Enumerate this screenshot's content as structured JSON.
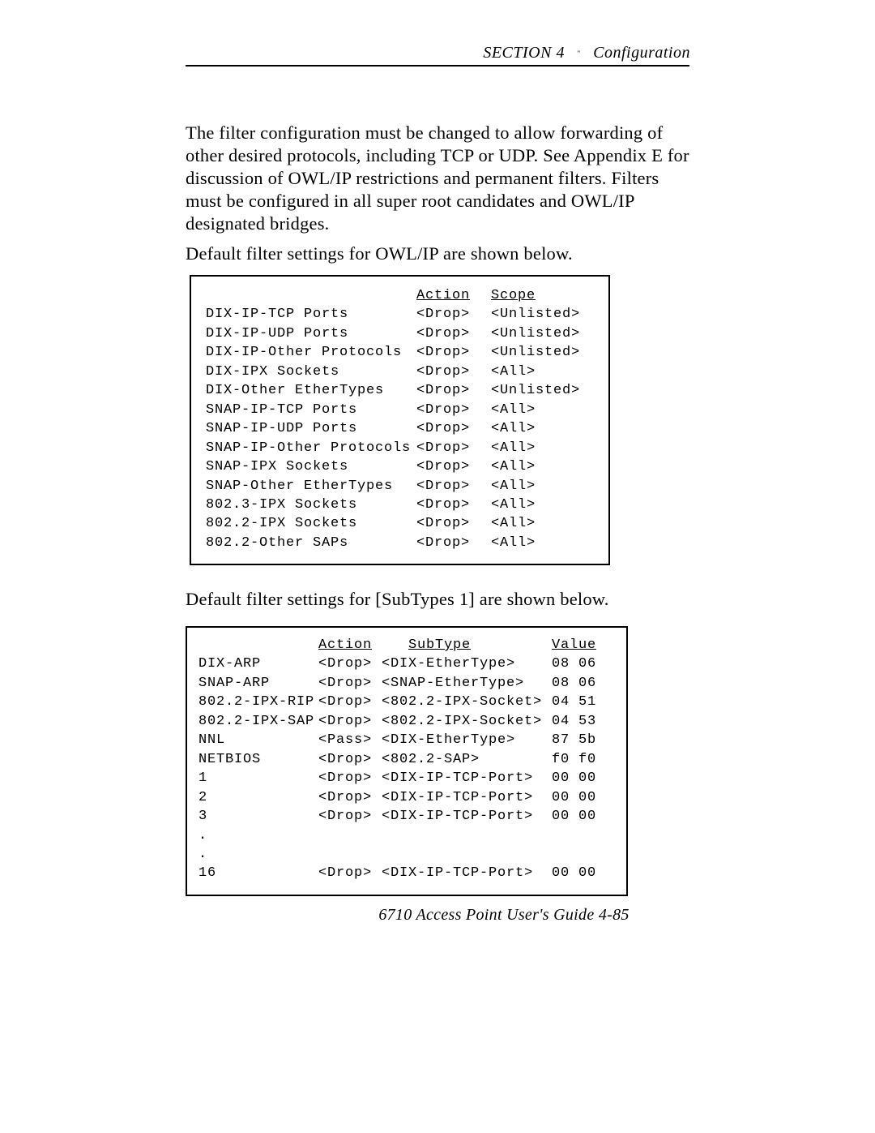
{
  "header": {
    "section": "SECTION 4",
    "title": "Configuration"
  },
  "paragraphs": {
    "p1": "The filter configuration must be changed to allow forwarding of other desired protocols, including TCP or UDP.  See Appendix E for discussion of OWL/IP restrictions and permanent filters.  Filters must be configured in all super root candidates and OWL/IP designated bridges.",
    "p2": "Default filter settings for OWL/IP are shown below.",
    "p3": "Default filter settings for [SubTypes 1] are shown below."
  },
  "table1": {
    "headers": {
      "c2": "Action",
      "c3": "Scope"
    },
    "rows": [
      {
        "name": "DIX-IP-TCP Ports",
        "action": "<Drop>",
        "scope": "<Unlisted>"
      },
      {
        "name": "DIX-IP-UDP Ports",
        "action": "<Drop>",
        "scope": "<Unlisted>"
      },
      {
        "name": "DIX-IP-Other Protocols",
        "action": "<Drop>",
        "scope": "<Unlisted>"
      },
      {
        "name": "DIX-IPX Sockets",
        "action": "<Drop>",
        "scope": "<All>"
      },
      {
        "name": "DIX-Other EtherTypes",
        "action": "<Drop>",
        "scope": "<Unlisted>"
      },
      {
        "name": "SNAP-IP-TCP Ports",
        "action": "<Drop>",
        "scope": "<All>"
      },
      {
        "name": "SNAP-IP-UDP Ports",
        "action": "<Drop>",
        "scope": "<All>"
      },
      {
        "name": "SNAP-IP-Other Protocols",
        "action": "<Drop>",
        "scope": "<All>"
      },
      {
        "name": "SNAP-IPX Sockets",
        "action": "<Drop>",
        "scope": "<All>"
      },
      {
        "name": "SNAP-Other EtherTypes",
        "action": "<Drop>",
        "scope": "<All>"
      },
      {
        "name": "802.3-IPX Sockets",
        "action": "<Drop>",
        "scope": "<All>"
      },
      {
        "name": "802.2-IPX Sockets",
        "action": "<Drop>",
        "scope": "<All>"
      },
      {
        "name": "802.2-Other SAPs",
        "action": "<Drop>",
        "scope": "<All>"
      }
    ]
  },
  "table2": {
    "headers": {
      "c2": "Action",
      "c3": "SubType",
      "c4": "Value"
    },
    "rows": [
      {
        "name": "DIX-ARP",
        "action": "<Drop>",
        "subtype": "<DIX-EtherType>",
        "value": "08 06"
      },
      {
        "name": "SNAP-ARP",
        "action": "<Drop>",
        "subtype": "<SNAP-EtherType>",
        "value": "08 06"
      },
      {
        "name": "802.2-IPX-RIP",
        "action": "<Drop>",
        "subtype": "<802.2-IPX-Socket>",
        "value": "04 51"
      },
      {
        "name": "802.2-IPX-SAP",
        "action": "<Drop>",
        "subtype": "<802.2-IPX-Socket>",
        "value": "04 53"
      },
      {
        "name": "NNL",
        "action": "<Pass>",
        "subtype": "<DIX-EtherType>",
        "value": "87 5b"
      },
      {
        "name": "NETBIOS",
        "action": "<Drop>",
        "subtype": "<802.2-SAP>",
        "value": "f0 f0"
      },
      {
        "name": "1",
        "action": "<Drop>",
        "subtype": "<DIX-IP-TCP-Port>",
        "value": "00 00"
      },
      {
        "name": "2",
        "action": "<Drop>",
        "subtype": "<DIX-IP-TCP-Port>",
        "value": "00 00"
      },
      {
        "name": "3",
        "action": "<Drop>",
        "subtype": "<DIX-IP-TCP-Port>",
        "value": "00 00"
      },
      {
        "name": ".",
        "action": "",
        "subtype": "",
        "value": ""
      },
      {
        "name": ".",
        "action": "",
        "subtype": "",
        "value": ""
      },
      {
        "name": "16",
        "action": "<Drop>",
        "subtype": "<DIX-IP-TCP-Port>",
        "value": "00 00"
      }
    ]
  },
  "footer": {
    "text": "6710 Access Point User's Guide    4-85"
  }
}
